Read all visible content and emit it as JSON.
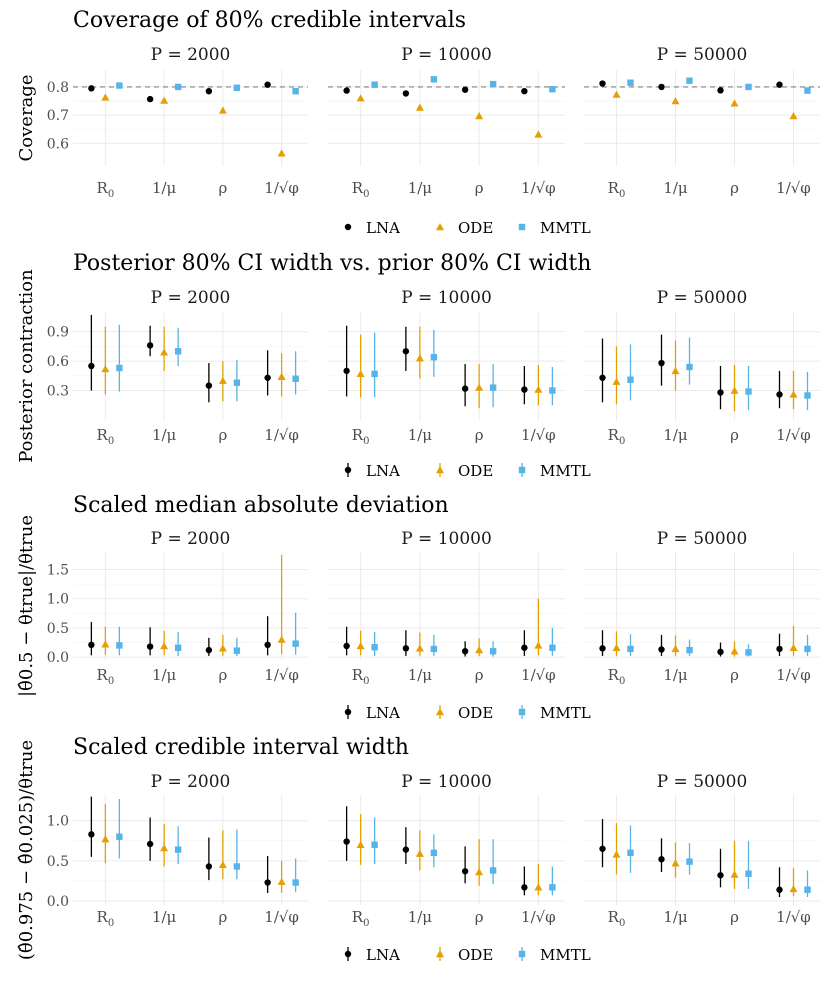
{
  "colors": {
    "LNA": "#000000",
    "ODE": "#E69F00",
    "MMTL": "#56B4E9",
    "grid": "#ebebeb",
    "ref": "#7f7f7f"
  },
  "params": [
    "R0",
    "1/mu",
    "rho",
    "1/sqrt(phi)"
  ],
  "param_labels": [
    {
      "main": "R",
      "sub": "0"
    },
    {
      "main": "1/μ",
      "sub": ""
    },
    {
      "main": "ρ",
      "sub": ""
    },
    {
      "main": "1/√φ",
      "sub": ""
    }
  ],
  "methods": [
    "LNA",
    "ODE",
    "MMTL"
  ],
  "facets": [
    "P = 2000",
    "P = 10000",
    "P = 50000"
  ],
  "chart_data": [
    {
      "type": "scatter",
      "title": "Coverage of 80% credible intervals",
      "ylabel": "Coverage",
      "ylim": [
        0.52,
        0.86
      ],
      "yticks": [
        0.6,
        0.7,
        0.8
      ],
      "ytick_labels": [
        "0.6",
        "0.7",
        "0.8"
      ],
      "ref_line": 0.8,
      "has_intervals": false,
      "panels": [
        {
          "facet": "P = 2000",
          "series": [
            {
              "name": "LNA",
              "values": [
                0.795,
                0.757,
                0.785,
                0.808
              ]
            },
            {
              "name": "ODE",
              "values": [
                0.763,
                0.752,
                0.717,
                0.565
              ]
            },
            {
              "name": "MMTL",
              "values": [
                0.805,
                0.8,
                0.797,
                0.785
              ]
            }
          ]
        },
        {
          "facet": "P = 10000",
          "series": [
            {
              "name": "LNA",
              "values": [
                0.787,
                0.777,
                0.79,
                0.785
              ]
            },
            {
              "name": "ODE",
              "values": [
                0.76,
                0.727,
                0.697,
                0.632
              ]
            },
            {
              "name": "MMTL",
              "values": [
                0.808,
                0.827,
                0.81,
                0.792
              ]
            }
          ]
        },
        {
          "facet": "P = 50000",
          "series": [
            {
              "name": "LNA",
              "values": [
                0.812,
                0.8,
                0.788,
                0.808
              ]
            },
            {
              "name": "ODE",
              "values": [
                0.773,
                0.75,
                0.742,
                0.697
              ]
            },
            {
              "name": "MMTL",
              "values": [
                0.815,
                0.822,
                0.8,
                0.787
              ]
            }
          ]
        }
      ],
      "legend": [
        "LNA",
        "ODE",
        "MMTL"
      ]
    },
    {
      "type": "scatter",
      "title": "Posterior 80% CI width vs. prior 80% CI width",
      "ylabel": "Posterior contraction",
      "ylim": [
        0.0,
        1.1
      ],
      "yticks": [
        0.3,
        0.6,
        0.9
      ],
      "ytick_labels": [
        "0.3",
        "0.6",
        "0.9"
      ],
      "has_intervals": true,
      "panels": [
        {
          "facet": "P = 2000",
          "series": [
            {
              "name": "LNA",
              "values": [
                0.55,
                0.76,
                0.35,
                0.43
              ],
              "lower": [
                0.3,
                0.65,
                0.18,
                0.25
              ],
              "upper": [
                1.07,
                0.96,
                0.58,
                0.71
              ]
            },
            {
              "name": "ODE",
              "values": [
                0.52,
                0.69,
                0.4,
                0.44
              ],
              "lower": [
                0.26,
                0.5,
                0.19,
                0.24
              ],
              "upper": [
                0.95,
                0.95,
                0.6,
                0.68
              ]
            },
            {
              "name": "MMTL",
              "values": [
                0.53,
                0.7,
                0.38,
                0.42
              ],
              "lower": [
                0.29,
                0.55,
                0.19,
                0.26
              ],
              "upper": [
                0.97,
                0.94,
                0.61,
                0.7
              ]
            }
          ]
        },
        {
          "facet": "P = 10000",
          "series": [
            {
              "name": "LNA",
              "values": [
                0.5,
                0.7,
                0.32,
                0.31
              ],
              "lower": [
                0.24,
                0.5,
                0.14,
                0.16
              ],
              "upper": [
                0.96,
                0.95,
                0.57,
                0.55
              ]
            },
            {
              "name": "ODE",
              "values": [
                0.47,
                0.63,
                0.33,
                0.31
              ],
              "lower": [
                0.23,
                0.42,
                0.12,
                0.15
              ],
              "upper": [
                0.87,
                0.95,
                0.57,
                0.56
              ]
            },
            {
              "name": "MMTL",
              "values": [
                0.47,
                0.64,
                0.33,
                0.3
              ],
              "lower": [
                0.23,
                0.44,
                0.13,
                0.15
              ],
              "upper": [
                0.89,
                0.92,
                0.57,
                0.54
              ]
            }
          ]
        },
        {
          "facet": "P = 50000",
          "series": [
            {
              "name": "LNA",
              "values": [
                0.43,
                0.58,
                0.28,
                0.26
              ],
              "lower": [
                0.18,
                0.35,
                0.11,
                0.12
              ],
              "upper": [
                0.83,
                0.87,
                0.55,
                0.5
              ]
            },
            {
              "name": "ODE",
              "values": [
                0.39,
                0.5,
                0.3,
                0.26
              ],
              "lower": [
                0.16,
                0.3,
                0.09,
                0.11
              ],
              "upper": [
                0.75,
                0.81,
                0.56,
                0.5
              ]
            },
            {
              "name": "MMTL",
              "values": [
                0.41,
                0.54,
                0.29,
                0.25
              ],
              "lower": [
                0.2,
                0.36,
                0.1,
                0.1
              ],
              "upper": [
                0.77,
                0.84,
                0.55,
                0.49
              ]
            }
          ]
        }
      ],
      "legend": [
        "LNA",
        "ODE",
        "MMTL"
      ]
    },
    {
      "type": "scatter",
      "title": "Scaled median absolute deviation",
      "ylabel": "|θ̂0.5 − θtrue|/θtrue",
      "ylim": [
        -0.05,
        1.8
      ],
      "yticks": [
        0.0,
        0.5,
        1.0,
        1.5
      ],
      "ytick_labels": [
        "0.0",
        "0.5",
        "1.0",
        "1.5"
      ],
      "has_intervals": true,
      "panels": [
        {
          "facet": "P = 2000",
          "series": [
            {
              "name": "LNA",
              "values": [
                0.21,
                0.18,
                0.12,
                0.21
              ],
              "lower": [
                0.03,
                0.03,
                0.02,
                0.03
              ],
              "upper": [
                0.6,
                0.51,
                0.33,
                0.7
              ]
            },
            {
              "name": "ODE",
              "values": [
                0.22,
                0.19,
                0.15,
                0.3
              ],
              "lower": [
                0.04,
                0.03,
                0.02,
                0.05
              ],
              "upper": [
                0.52,
                0.45,
                0.38,
                1.75
              ]
            },
            {
              "name": "MMTL",
              "values": [
                0.2,
                0.16,
                0.11,
                0.23
              ],
              "lower": [
                0.03,
                0.02,
                0.02,
                0.04
              ],
              "upper": [
                0.52,
                0.43,
                0.33,
                0.76
              ]
            }
          ]
        },
        {
          "facet": "P = 10000",
          "series": [
            {
              "name": "LNA",
              "values": [
                0.19,
                0.15,
                0.1,
                0.16
              ],
              "lower": [
                0.03,
                0.02,
                0.01,
                0.02
              ],
              "upper": [
                0.52,
                0.46,
                0.27,
                0.46
              ]
            },
            {
              "name": "ODE",
              "values": [
                0.19,
                0.15,
                0.12,
                0.2
              ],
              "lower": [
                0.03,
                0.02,
                0.02,
                0.03
              ],
              "upper": [
                0.45,
                0.42,
                0.32,
                1.0
              ]
            },
            {
              "name": "MMTL",
              "values": [
                0.17,
                0.14,
                0.1,
                0.16
              ],
              "lower": [
                0.02,
                0.02,
                0.01,
                0.02
              ],
              "upper": [
                0.43,
                0.38,
                0.27,
                0.5
              ]
            }
          ]
        },
        {
          "facet": "P = 50000",
          "series": [
            {
              "name": "LNA",
              "values": [
                0.15,
                0.13,
                0.09,
                0.14
              ],
              "lower": [
                0.02,
                0.02,
                0.01,
                0.02
              ],
              "upper": [
                0.46,
                0.38,
                0.25,
                0.4
              ]
            },
            {
              "name": "ODE",
              "values": [
                0.16,
                0.14,
                0.1,
                0.16
              ],
              "lower": [
                0.02,
                0.02,
                0.01,
                0.02
              ],
              "upper": [
                0.44,
                0.37,
                0.27,
                0.53
              ]
            },
            {
              "name": "MMTL",
              "values": [
                0.14,
                0.12,
                0.08,
                0.14
              ],
              "lower": [
                0.02,
                0.02,
                0.01,
                0.02
              ],
              "upper": [
                0.39,
                0.3,
                0.22,
                0.38
              ]
            }
          ]
        }
      ],
      "legend": [
        "LNA",
        "ODE",
        "MMTL"
      ]
    },
    {
      "type": "scatter",
      "title": "Scaled credible interval width",
      "ylabel": "(θ̂0.975 − θ̂0.025)/θtrue",
      "ylim": [
        -0.05,
        1.32
      ],
      "yticks": [
        0.0,
        0.5,
        1.0
      ],
      "ytick_labels": [
        "0.0",
        "0.5",
        "1.0"
      ],
      "has_intervals": true,
      "panels": [
        {
          "facet": "P = 2000",
          "series": [
            {
              "name": "LNA",
              "values": [
                0.83,
                0.71,
                0.43,
                0.23
              ],
              "lower": [
                0.55,
                0.5,
                0.26,
                0.1
              ],
              "upper": [
                1.3,
                1.04,
                0.79,
                0.56
              ]
            },
            {
              "name": "ODE",
              "values": [
                0.77,
                0.66,
                0.45,
                0.24
              ],
              "lower": [
                0.47,
                0.43,
                0.27,
                0.1
              ],
              "upper": [
                1.21,
                0.96,
                0.88,
                0.5
              ]
            },
            {
              "name": "MMTL",
              "values": [
                0.8,
                0.64,
                0.43,
                0.23
              ],
              "lower": [
                0.53,
                0.46,
                0.27,
                0.11
              ],
              "upper": [
                1.27,
                0.93,
                0.89,
                0.53
              ]
            }
          ]
        },
        {
          "facet": "P = 10000",
          "series": [
            {
              "name": "LNA",
              "values": [
                0.74,
                0.64,
                0.37,
                0.17
              ],
              "lower": [
                0.5,
                0.46,
                0.22,
                0.07
              ],
              "upper": [
                1.18,
                0.92,
                0.68,
                0.43
              ]
            },
            {
              "name": "ODE",
              "values": [
                0.7,
                0.59,
                0.36,
                0.17
              ],
              "lower": [
                0.45,
                0.38,
                0.19,
                0.07
              ],
              "upper": [
                1.08,
                0.88,
                0.77,
                0.46
              ]
            },
            {
              "name": "MMTL",
              "values": [
                0.7,
                0.6,
                0.38,
                0.17
              ],
              "lower": [
                0.46,
                0.42,
                0.21,
                0.07
              ],
              "upper": [
                1.04,
                0.83,
                0.77,
                0.43
              ]
            }
          ]
        },
        {
          "facet": "P = 50000",
          "series": [
            {
              "name": "LNA",
              "values": [
                0.65,
                0.52,
                0.32,
                0.14
              ],
              "lower": [
                0.42,
                0.36,
                0.17,
                0.05
              ],
              "upper": [
                1.02,
                0.78,
                0.65,
                0.42
              ]
            },
            {
              "name": "ODE",
              "values": [
                0.58,
                0.47,
                0.33,
                0.15
              ],
              "lower": [
                0.33,
                0.29,
                0.15,
                0.06
              ],
              "upper": [
                0.97,
                0.73,
                0.75,
                0.41
              ]
            },
            {
              "name": "MMTL",
              "values": [
                0.6,
                0.49,
                0.34,
                0.14
              ],
              "lower": [
                0.35,
                0.33,
                0.15,
                0.05
              ],
              "upper": [
                0.94,
                0.72,
                0.75,
                0.38
              ]
            }
          ]
        }
      ],
      "legend": [
        "LNA",
        "ODE",
        "MMTL"
      ]
    }
  ]
}
